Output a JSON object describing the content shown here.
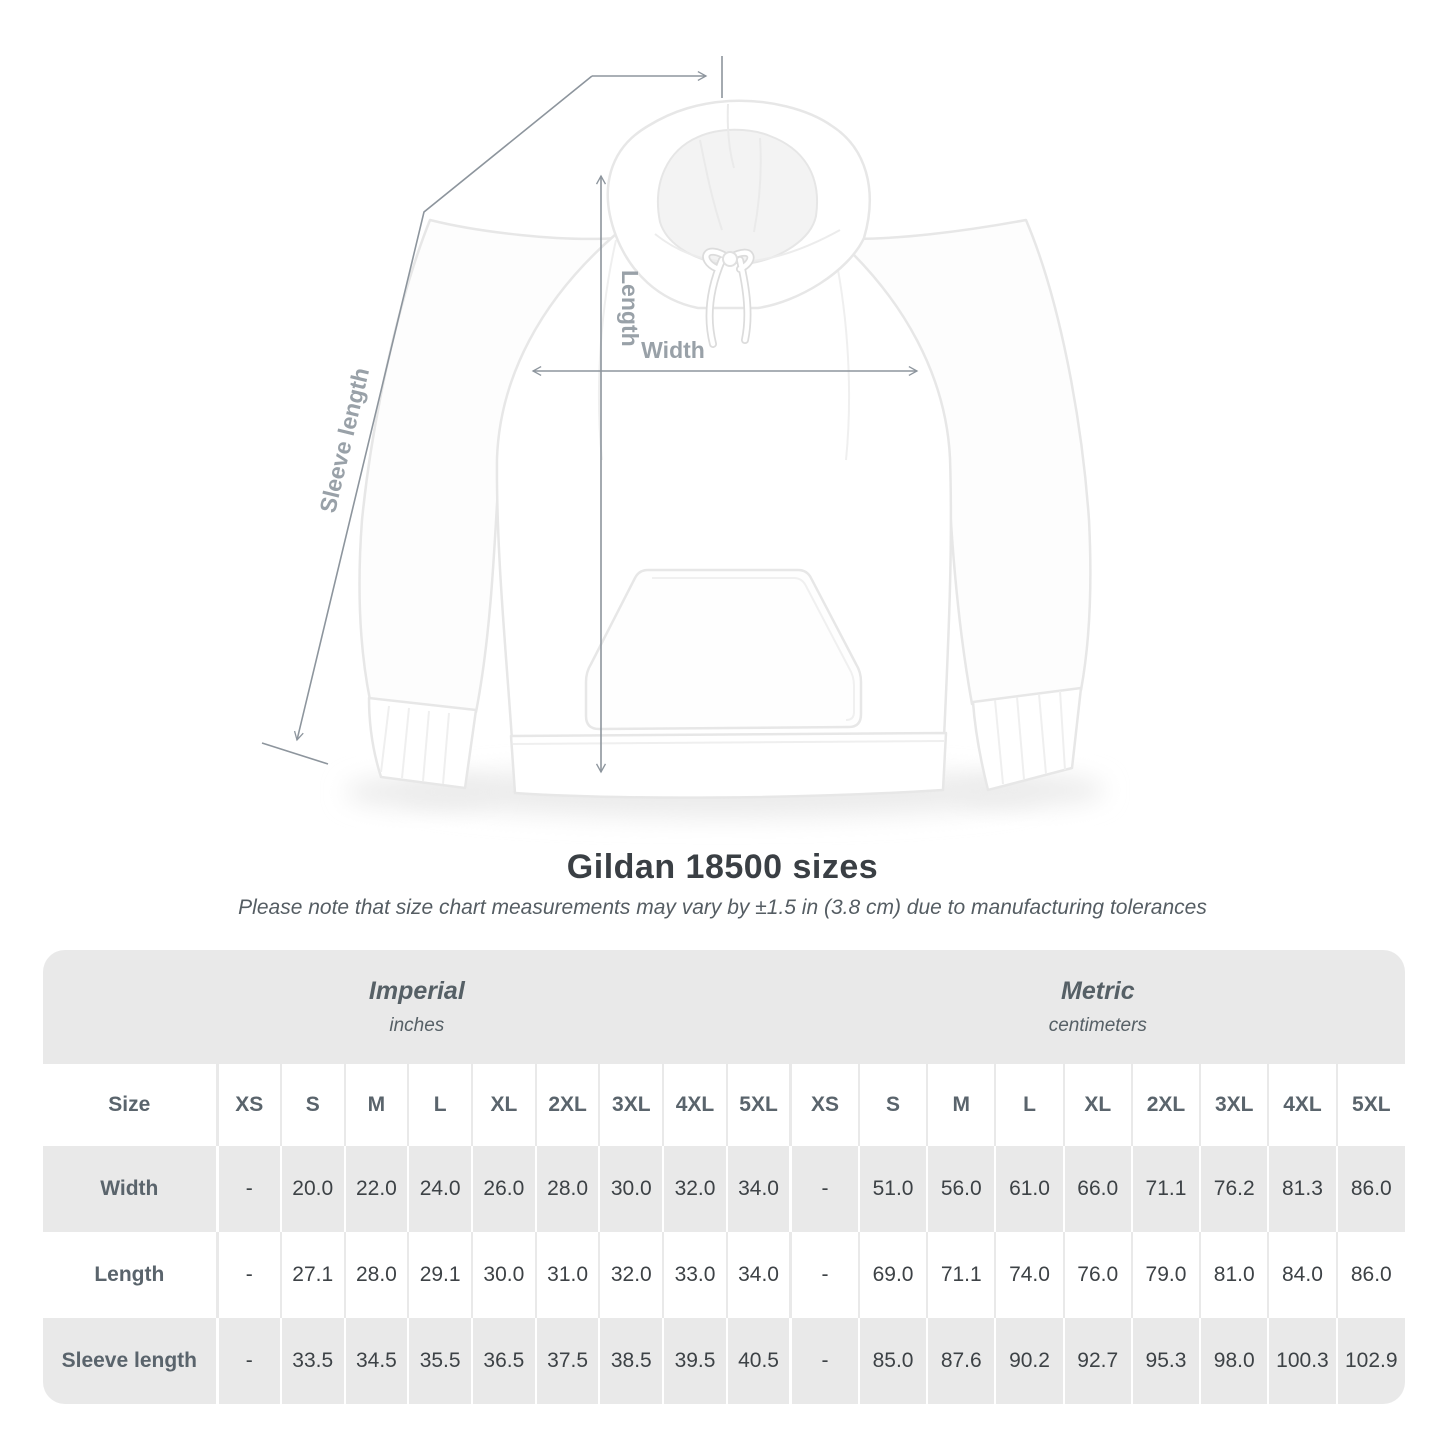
{
  "page": {
    "title": "Gildan 18500 sizes",
    "subtitle": "Please note that size chart measurements may vary by ±1.5 in (3.8 cm) due to manufacturing tolerances"
  },
  "diagram": {
    "product": "white pullover hoodie front view",
    "measure_labels": {
      "length": "Length",
      "width": "Width",
      "sleeve_length": "Sleeve length"
    }
  },
  "chart_data": {
    "type": "table",
    "title": "Gildan 18500 sizes",
    "corner_header": "Size",
    "column_groups": [
      {
        "label": "Imperial",
        "unit": "inches",
        "sizes": [
          "XS",
          "S",
          "M",
          "L",
          "XL",
          "2XL",
          "3XL",
          "4XL",
          "5XL"
        ]
      },
      {
        "label": "Metric",
        "unit": "centimeters",
        "sizes": [
          "XS",
          "S",
          "M",
          "L",
          "XL",
          "2XL",
          "3XL",
          "4XL",
          "5XL"
        ]
      }
    ],
    "rows": [
      {
        "label": "Width",
        "imperial": [
          "-",
          "20.0",
          "22.0",
          "24.0",
          "26.0",
          "28.0",
          "30.0",
          "32.0",
          "34.0"
        ],
        "metric": [
          "-",
          "51.0",
          "56.0",
          "61.0",
          "66.0",
          "71.1",
          "76.2",
          "81.3",
          "86.0"
        ]
      },
      {
        "label": "Length",
        "imperial": [
          "-",
          "27.1",
          "28.0",
          "29.1",
          "30.0",
          "31.0",
          "32.0",
          "33.0",
          "34.0"
        ],
        "metric": [
          "-",
          "69.0",
          "71.1",
          "74.0",
          "76.0",
          "79.0",
          "81.0",
          "84.0",
          "86.0"
        ]
      },
      {
        "label": "Sleeve length",
        "imperial": [
          "-",
          "33.5",
          "34.5",
          "35.5",
          "36.5",
          "37.5",
          "38.5",
          "39.5",
          "40.5"
        ],
        "metric": [
          "-",
          "85.0",
          "87.6",
          "90.2",
          "92.7",
          "95.3",
          "98.0",
          "100.3",
          "102.9"
        ]
      }
    ]
  },
  "colors": {
    "measure_line": "#8d959d",
    "measure_label": "#99a1a8",
    "row_gray": "#e9e9e9",
    "header_text": "#5a646c",
    "value_text": "#3d4246",
    "title_text": "#3a3f44",
    "subtitle_text": "#555d63"
  }
}
